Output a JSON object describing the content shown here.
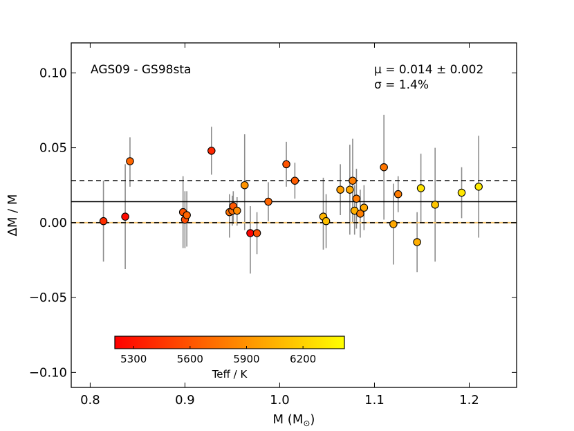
{
  "chart_data": {
    "type": "scatter",
    "title": "",
    "xlabel": "M (M",
    "xlabel_sub": "⊙",
    "xlabel_close": ")",
    "ylabel": "ΔM / M",
    "xlim": [
      0.78,
      1.25
    ],
    "ylim": [
      -0.11,
      0.12
    ],
    "x_ticks": [
      0.8,
      0.9,
      1.0,
      1.1,
      1.2
    ],
    "x_tick_labels": [
      "0.8",
      "0.9",
      "1.0",
      "1.1",
      "1.2"
    ],
    "y_ticks": [
      -0.1,
      -0.05,
      0.0,
      0.05,
      0.1
    ],
    "y_tick_labels": [
      "−0.10",
      "−0.05",
      "0.00",
      "0.05",
      "0.10"
    ],
    "annotation_left": "AGS09 - GS98sta",
    "annotation_mu": "μ = 0.014 ± 0.002",
    "annotation_sigma": "σ = 1.4%",
    "lines": [
      {
        "name": "mean",
        "y": 0.014,
        "style": "solid",
        "color": "#000000"
      },
      {
        "name": "plus-sigma",
        "y": 0.028,
        "style": "dashed",
        "color": "#000000"
      },
      {
        "name": "minus-sigma",
        "y": 0.0,
        "style": "dashed",
        "color": "#000000"
      },
      {
        "name": "zero",
        "y": 0.0,
        "style": "solid",
        "color": "#f5c26b"
      }
    ],
    "colorbar": {
      "label": "Teff / K",
      "range": [
        5200,
        6420
      ],
      "ticks": [
        5300,
        5600,
        5900,
        6200
      ],
      "tick_labels": [
        "5300",
        "5600",
        "5900",
        "6200"
      ],
      "colors": [
        "#ff0000",
        "#ff8000",
        "#ffff00"
      ]
    },
    "points": [
      {
        "x": 0.814,
        "y": 0.001,
        "err_lo": 0.027,
        "err_hi": 0.027,
        "teff": 5420
      },
      {
        "x": 0.837,
        "y": 0.004,
        "err_lo": 0.035,
        "err_hi": 0.035,
        "teff": 5250
      },
      {
        "x": 0.842,
        "y": 0.041,
        "err_lo": 0.017,
        "err_hi": 0.016,
        "teff": 5680
      },
      {
        "x": 0.898,
        "y": 0.007,
        "err_lo": 0.024,
        "err_hi": 0.024,
        "teff": 5600
      },
      {
        "x": 0.9,
        "y": 0.002,
        "err_lo": 0.019,
        "err_hi": 0.019,
        "teff": 5560
      },
      {
        "x": 0.902,
        "y": 0.005,
        "err_lo": 0.021,
        "err_hi": 0.016,
        "teff": 5680
      },
      {
        "x": 0.928,
        "y": 0.048,
        "err_lo": 0.016,
        "err_hi": 0.016,
        "teff": 5380
      },
      {
        "x": 0.947,
        "y": 0.007,
        "err_lo": 0.017,
        "err_hi": 0.012,
        "teff": 5740
      },
      {
        "x": 0.95,
        "y": 0.008,
        "err_lo": 0.01,
        "err_hi": 0.01,
        "teff": 5720
      },
      {
        "x": 0.951,
        "y": 0.011,
        "err_lo": 0.012,
        "err_hi": 0.01,
        "teff": 5620
      },
      {
        "x": 0.955,
        "y": 0.008,
        "err_lo": 0.01,
        "err_hi": 0.009,
        "teff": 5860
      },
      {
        "x": 0.963,
        "y": 0.025,
        "err_lo": 0.03,
        "err_hi": 0.034,
        "teff": 5900
      },
      {
        "x": 0.969,
        "y": -0.007,
        "err_lo": 0.027,
        "err_hi": 0.018,
        "teff": 5220
      },
      {
        "x": 0.976,
        "y": -0.007,
        "err_lo": 0.014,
        "err_hi": 0.014,
        "teff": 5580
      },
      {
        "x": 0.988,
        "y": 0.014,
        "err_lo": 0.013,
        "err_hi": 0.013,
        "teff": 5680
      },
      {
        "x": 1.007,
        "y": 0.039,
        "err_lo": 0.015,
        "err_hi": 0.015,
        "teff": 5600
      },
      {
        "x": 1.016,
        "y": 0.028,
        "err_lo": 0.012,
        "err_hi": 0.012,
        "teff": 5640
      },
      {
        "x": 1.046,
        "y": 0.004,
        "err_lo": 0.022,
        "err_hi": 0.026,
        "teff": 6060
      },
      {
        "x": 1.049,
        "y": 0.001,
        "err_lo": 0.018,
        "err_hi": 0.018,
        "teff": 6120
      },
      {
        "x": 1.064,
        "y": 0.022,
        "err_lo": 0.017,
        "err_hi": 0.017,
        "teff": 5960
      },
      {
        "x": 1.074,
        "y": 0.022,
        "err_lo": 0.03,
        "err_hi": 0.03,
        "teff": 6000
      },
      {
        "x": 1.077,
        "y": 0.028,
        "err_lo": 0.028,
        "err_hi": 0.028,
        "teff": 5800
      },
      {
        "x": 1.079,
        "y": 0.008,
        "err_lo": 0.016,
        "err_hi": 0.017,
        "teff": 6040
      },
      {
        "x": 1.081,
        "y": 0.016,
        "err_lo": 0.02,
        "err_hi": 0.02,
        "teff": 5780
      },
      {
        "x": 1.085,
        "y": 0.006,
        "err_lo": 0.016,
        "err_hi": 0.016,
        "teff": 5800
      },
      {
        "x": 1.089,
        "y": 0.01,
        "err_lo": 0.015,
        "err_hi": 0.015,
        "teff": 6000
      },
      {
        "x": 1.11,
        "y": 0.037,
        "err_lo": 0.035,
        "err_hi": 0.035,
        "teff": 5760
      },
      {
        "x": 1.12,
        "y": -0.001,
        "err_lo": 0.027,
        "err_hi": 0.027,
        "teff": 6000
      },
      {
        "x": 1.125,
        "y": 0.019,
        "err_lo": 0.012,
        "err_hi": 0.012,
        "teff": 5790
      },
      {
        "x": 1.145,
        "y": -0.013,
        "err_lo": 0.02,
        "err_hi": 0.02,
        "teff": 6030
      },
      {
        "x": 1.149,
        "y": 0.023,
        "err_lo": 0.023,
        "err_hi": 0.023,
        "teff": 6290
      },
      {
        "x": 1.164,
        "y": 0.012,
        "err_lo": 0.038,
        "err_hi": 0.038,
        "teff": 6140
      },
      {
        "x": 1.192,
        "y": 0.02,
        "err_lo": 0.017,
        "err_hi": 0.017,
        "teff": 6300
      },
      {
        "x": 1.21,
        "y": 0.024,
        "err_lo": 0.034,
        "err_hi": 0.034,
        "teff": 6330
      }
    ]
  }
}
